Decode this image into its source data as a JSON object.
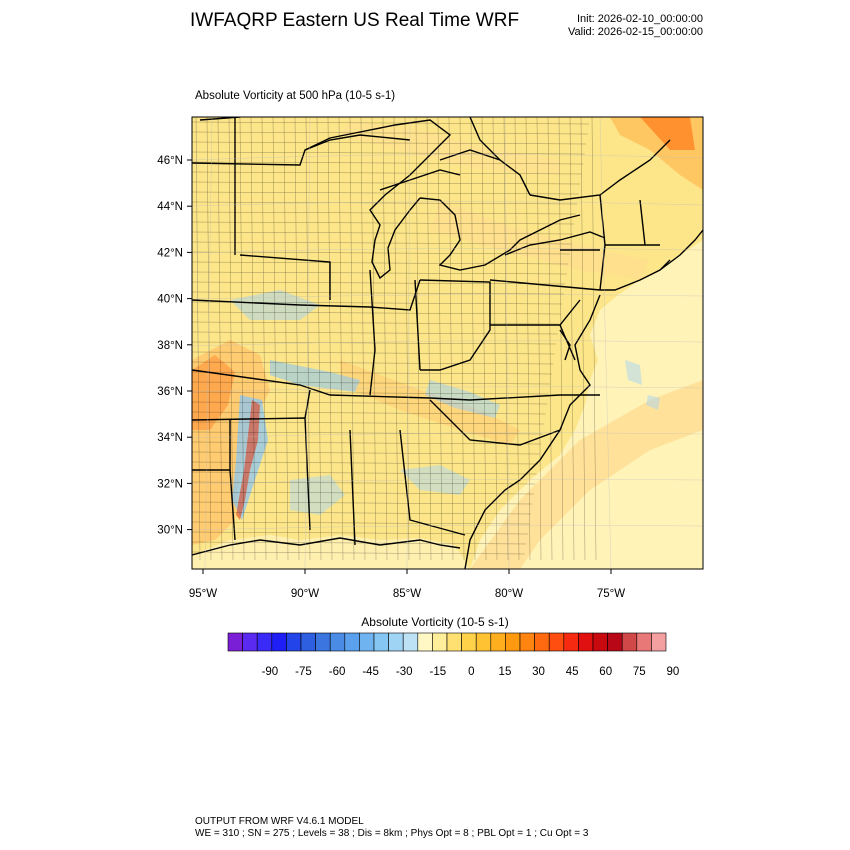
{
  "header": {
    "title": "IWFAQRP Eastern US Real Time WRF",
    "init": "Init: 2026-02-10_00:00:00",
    "valid": "Valid: 2026-02-15_00:00:00"
  },
  "field": {
    "title": "Absolute Vorticity at 500 hPa   (10-5 s-1)"
  },
  "map": {
    "lat_labels": [
      "46°N",
      "44°N",
      "42°N",
      "40°N",
      "38°N",
      "36°N",
      "34°N",
      "32°N",
      "30°N"
    ],
    "lon_labels": [
      "95°W",
      "90°W",
      "85°W",
      "80°W",
      "75°W"
    ],
    "background_color": "#fde68a",
    "ocean_color": "#fff3b8"
  },
  "colorbar": {
    "title": "Absolute Vorticity  (10-5 s-1)",
    "tick_labels": [
      "-90",
      "-75",
      "-60",
      "-45",
      "-30",
      "-15",
      "0",
      "15",
      "30",
      "45",
      "60",
      "75",
      "90"
    ],
    "colors": [
      "#7a1fd6",
      "#5a2af0",
      "#3a2af8",
      "#1e1ef5",
      "#2244e8",
      "#2e5fe0",
      "#3b75e0",
      "#4a8be6",
      "#5aa0ec",
      "#6fb4f0",
      "#86c6f2",
      "#a0d4f4",
      "#bde2f6",
      "#fff7c4",
      "#ffee9a",
      "#ffe070",
      "#ffd24a",
      "#ffc232",
      "#ffae1e",
      "#ff9a10",
      "#ff8410",
      "#ff6a10",
      "#ff4e10",
      "#f52a10",
      "#e01010",
      "#c80a10",
      "#b80818",
      "#d04848",
      "#e87878",
      "#f4a0a0"
    ]
  },
  "footer": {
    "line1": "OUTPUT FROM WRF V4.6.1 MODEL",
    "line2": "WE = 310 ; SN = 275 ; Levels = 38 ; Dis = 8km ; Phys Opt = 8 ; PBL Opt = 1 ; Cu Opt = 3"
  }
}
